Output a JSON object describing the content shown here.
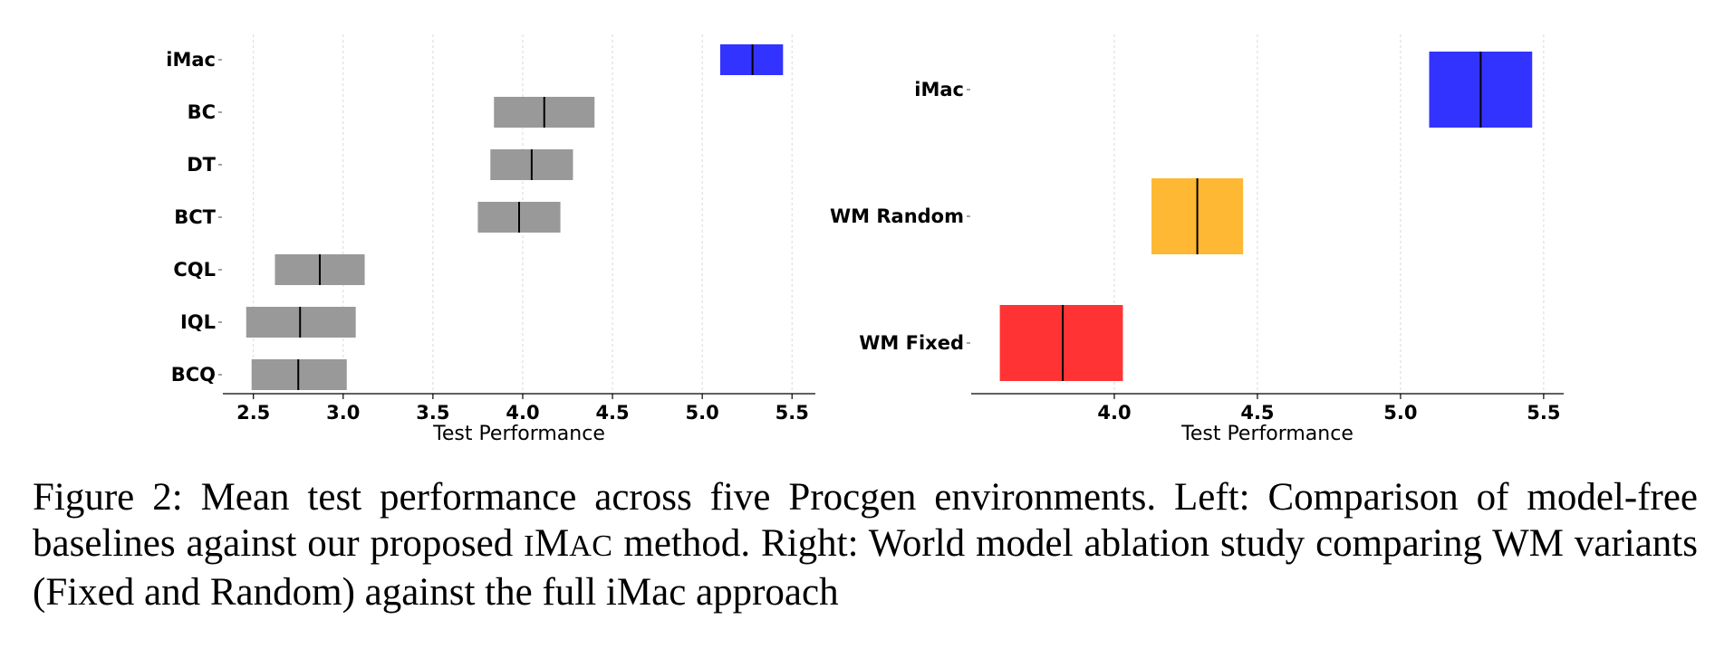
{
  "chart_data": [
    {
      "type": "box",
      "panel": "left",
      "xlabel": "Test Performance",
      "ylabel": "",
      "xlim": [
        2.33,
        5.63
      ],
      "xticks": [
        "2.5",
        "3.0",
        "3.5",
        "4.0",
        "4.5",
        "5.0",
        "5.5"
      ],
      "xtick_values": [
        2.5,
        3.0,
        3.5,
        4.0,
        4.5,
        5.0,
        5.5
      ],
      "grid": "vertical dashed",
      "categories": [
        "iMac",
        "BC",
        "DT",
        "BCT",
        "CQL",
        "IQL",
        "BCQ"
      ],
      "series": [
        {
          "label": "iMac",
          "low": 5.1,
          "median": 5.28,
          "high": 5.45,
          "color": "#3333ff"
        },
        {
          "label": "BC",
          "low": 3.84,
          "median": 4.12,
          "high": 4.4,
          "color": "#999999"
        },
        {
          "label": "DT",
          "low": 3.82,
          "median": 4.05,
          "high": 4.28,
          "color": "#999999"
        },
        {
          "label": "BCT",
          "low": 3.75,
          "median": 3.98,
          "high": 4.21,
          "color": "#999999"
        },
        {
          "label": "CQL",
          "low": 2.62,
          "median": 2.87,
          "high": 3.12,
          "color": "#999999"
        },
        {
          "label": "IQL",
          "low": 2.46,
          "median": 2.76,
          "high": 3.07,
          "color": "#999999"
        },
        {
          "label": "BCQ",
          "low": 2.49,
          "median": 2.75,
          "high": 3.02,
          "color": "#999999"
        }
      ]
    },
    {
      "type": "box",
      "panel": "right",
      "xlabel": "Test Performance",
      "ylabel": "",
      "xlim": [
        3.5,
        5.57
      ],
      "xticks": [
        "4.0",
        "4.5",
        "5.0",
        "5.5"
      ],
      "xtick_values": [
        4.0,
        4.5,
        5.0,
        5.5
      ],
      "grid": "vertical dashed",
      "categories": [
        "iMac",
        "WM Random",
        "WM Fixed"
      ],
      "series": [
        {
          "label": "iMac",
          "low": 5.1,
          "median": 5.28,
          "high": 5.46,
          "color": "#3333ff"
        },
        {
          "label": "WM Random",
          "low": 4.13,
          "median": 4.29,
          "high": 4.45,
          "color": "#ffb833"
        },
        {
          "label": "WM Fixed",
          "low": 3.6,
          "median": 3.82,
          "high": 4.03,
          "color": "#ff3333"
        }
      ]
    }
  ],
  "caption": {
    "prefix": "Figure 2: Mean test performance across five Procgen environments. Left: Comparison of model-free baselines against our proposed ",
    "method_first": "I",
    "method_m": "M",
    "method_rest": "AC",
    "suffix": " method. Right: World model ablation study comparing WM variants (Fixed and Random) against the full iMac approach"
  }
}
